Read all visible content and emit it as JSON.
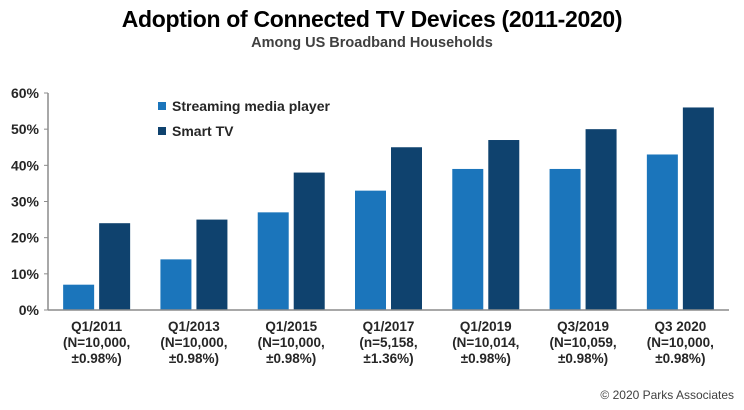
{
  "chart_data": {
    "type": "bar",
    "title": "Adoption of Connected TV Devices  (2011-2020)",
    "subtitle": "Among US Broadband Households",
    "xlabel": "",
    "ylabel": "",
    "ylim": [
      0,
      60
    ],
    "yticks": [
      "0%",
      "10%",
      "20%",
      "30%",
      "40%",
      "50%",
      "60%"
    ],
    "ytick_values": [
      0,
      10,
      20,
      30,
      40,
      50,
      60
    ],
    "grid": false,
    "legend_position": "top-left",
    "categories": [
      [
        "Q1/2011",
        "(N=10,000,",
        "±0.98%)"
      ],
      [
        "Q1/2013",
        "(N=10,000,",
        "±0.98%)"
      ],
      [
        "Q1/2015",
        "(N=10,000,",
        "±0.98%)"
      ],
      [
        "Q1/2017",
        "(n=5,158,",
        "±1.36%)"
      ],
      [
        "Q1/2019",
        "(N=10,014,",
        "±0.98%)"
      ],
      [
        "Q3/2019",
        "(N=10,059,",
        "±0.98%)"
      ],
      [
        "Q3 2020",
        "(N=10,000,",
        "±0.98%)"
      ]
    ],
    "series": [
      {
        "name": "Streaming media player",
        "color": "#1B75BB",
        "values": [
          7,
          14,
          27,
          33,
          39,
          39,
          43
        ]
      },
      {
        "name": "Smart TV",
        "color": "#0F426E",
        "values": [
          24,
          25,
          38,
          45,
          47,
          50,
          56
        ]
      }
    ]
  },
  "credit": "© 2020 Parks Associates"
}
